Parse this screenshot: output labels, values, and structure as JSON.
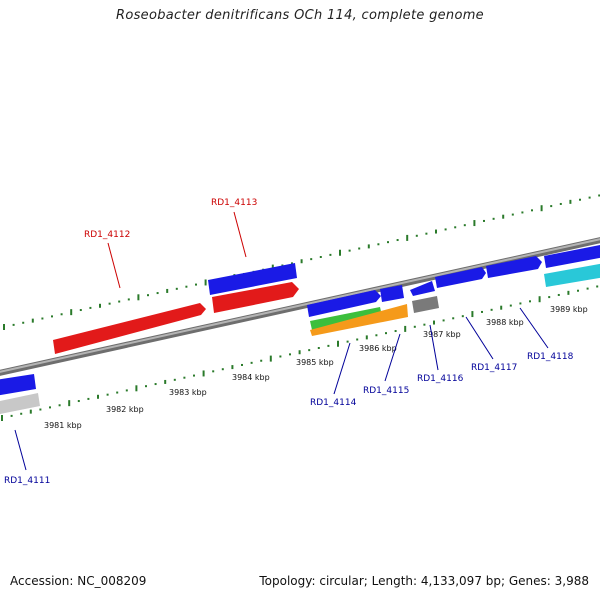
{
  "title": "Roseobacter denitrificans OCh 114, complete genome",
  "footer": {
    "accession": "Accession: NC_008209",
    "stats": "Topology: circular; Length: 4,133,097 bp; Genes: 3,988"
  },
  "colors": {
    "backbone": "#8a8a8a",
    "tick": "#2a7a2a",
    "blue": "#1a1ae6",
    "red": "#e21a1a",
    "green": "#3cbf3c",
    "orange": "#f59a1a",
    "gray": "#7a7a7a",
    "lightgray": "#c8c8c8",
    "cyan": "#29c8d8",
    "label_red": "#cc0000",
    "label_blue": "#000099"
  },
  "kbp_labels": [
    "3981 kbp",
    "3982 kbp",
    "3983 kbp",
    "3984 kbp",
    "3985 kbp",
    "3986 kbp",
    "3987 kbp",
    "3988 kbp",
    "3989 kbp"
  ],
  "gene_labels": [
    {
      "name": "RD1_4111",
      "color": "label_blue"
    },
    {
      "name": "RD1_4112",
      "color": "label_red"
    },
    {
      "name": "RD1_4113",
      "color": "label_red"
    },
    {
      "name": "RD1_4114",
      "color": "label_blue"
    },
    {
      "name": "RD1_4115",
      "color": "label_blue"
    },
    {
      "name": "RD1_4116",
      "color": "label_blue"
    },
    {
      "name": "RD1_4117",
      "color": "label_blue"
    },
    {
      "name": "RD1_4118",
      "color": "label_blue"
    }
  ]
}
